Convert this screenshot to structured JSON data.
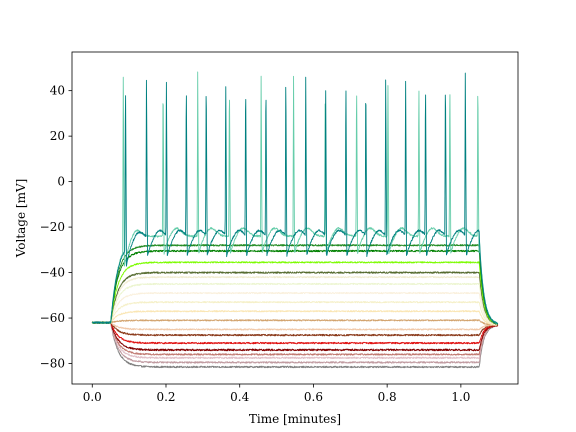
{
  "chart_data": {
    "type": "line",
    "title": "",
    "xlabel": "Time [minutes]",
    "ylabel": "Voltage [mV]",
    "xlim": [
      -0.055,
      1.155
    ],
    "ylim": [
      -89,
      57
    ],
    "xticks": [
      0.0,
      0.2,
      0.4,
      0.6,
      0.8,
      1.0
    ],
    "xtick_labels": [
      "0.0",
      "0.2",
      "0.4",
      "0.6",
      "0.8",
      "1.0"
    ],
    "yticks": [
      -80,
      -60,
      -40,
      -20,
      0,
      20,
      40
    ],
    "ytick_labels": [
      "−80",
      "−60",
      "−40",
      "−20",
      "0",
      "20",
      "40"
    ],
    "grid": false,
    "stimulus": {
      "onset": 0.05,
      "offset": 1.05,
      "end": 1.1
    },
    "series": [
      {
        "color": "#808080",
        "rest": -62,
        "steady": -81.5,
        "final": -63,
        "noise": 0.35,
        "spikes": []
      },
      {
        "color": "#c09aa0",
        "rest": -62,
        "steady": -79.5,
        "final": -63,
        "noise": 0.35,
        "spikes": []
      },
      {
        "color": "#e0c0c8",
        "rest": -62,
        "steady": -77.5,
        "final": -63,
        "noise": 0.35,
        "spikes": []
      },
      {
        "color": "#c07870",
        "rest": -62,
        "steady": -76.0,
        "final": -63,
        "noise": 0.35,
        "spikes": []
      },
      {
        "color": "#800000",
        "rest": -62,
        "steady": -74.0,
        "final": -63,
        "noise": 0.4,
        "spikes": []
      },
      {
        "color": "#e01010",
        "rest": -62,
        "steady": -71.0,
        "final": -63,
        "noise": 0.35,
        "spikes": []
      },
      {
        "color": "#8b3a1a",
        "rest": -62,
        "steady": -67.5,
        "final": -63,
        "noise": 0.35,
        "spikes": []
      },
      {
        "color": "#f0c8a8",
        "rest": -62,
        "steady": -65.0,
        "final": -63,
        "noise": 0.3,
        "spikes": []
      },
      {
        "color": "#d2a36e",
        "rest": -62,
        "steady": -61.0,
        "final": -63,
        "noise": 0.3,
        "spikes": []
      },
      {
        "color": "#fae6b4",
        "rest": -62,
        "steady": -57.0,
        "final": -63,
        "noise": 0.3,
        "spikes": []
      },
      {
        "color": "#f5f0c8",
        "rest": -62,
        "steady": -53.0,
        "final": -63,
        "noise": 0.3,
        "spikes": []
      },
      {
        "color": "#faf0dc",
        "rest": -62,
        "steady": -49.0,
        "final": -63,
        "noise": 0.3,
        "spikes": []
      },
      {
        "color": "#ecf5d0",
        "rest": -62,
        "steady": -45.0,
        "final": -63,
        "noise": 0.3,
        "spikes": []
      },
      {
        "color": "#f0ecd0",
        "rest": -62,
        "steady": -42.0,
        "final": -63,
        "noise": 0.3,
        "spikes": []
      },
      {
        "color": "#556b2f",
        "rest": -62,
        "steady": -40.0,
        "final": -63,
        "noise": 0.35,
        "spikes": []
      },
      {
        "color": "#7cfc00",
        "rest": -62,
        "steady": -35.5,
        "final": -63,
        "noise": 0.3,
        "spikes": []
      },
      {
        "color": "#008000",
        "rest": -62,
        "steady": -30.5,
        "final": -63,
        "noise": 0.35,
        "spikes": []
      },
      {
        "color": "#228b22",
        "rest": -62,
        "steady": -28.0,
        "final": -63,
        "noise": 0.35,
        "spikes": []
      },
      {
        "color": "#66cdaa",
        "rest": -62,
        "steady": -24.0,
        "final": -63,
        "noise": 0.4,
        "spikes": [
          0.084,
          0.192,
          0.286,
          0.372,
          0.458,
          0.546,
          0.632,
          0.717,
          0.802,
          0.886,
          0.97,
          1.046
        ]
      },
      {
        "color": "#008080",
        "rest": -62,
        "steady": -25.0,
        "final": -63,
        "noise": 0.4,
        "spikes": [
          0.09,
          0.147,
          0.201,
          0.255,
          0.309,
          0.362,
          0.416,
          0.471,
          0.525,
          0.579,
          0.633,
          0.688,
          0.742,
          0.796,
          0.85,
          0.904,
          0.958,
          1.012
        ]
      }
    ]
  }
}
